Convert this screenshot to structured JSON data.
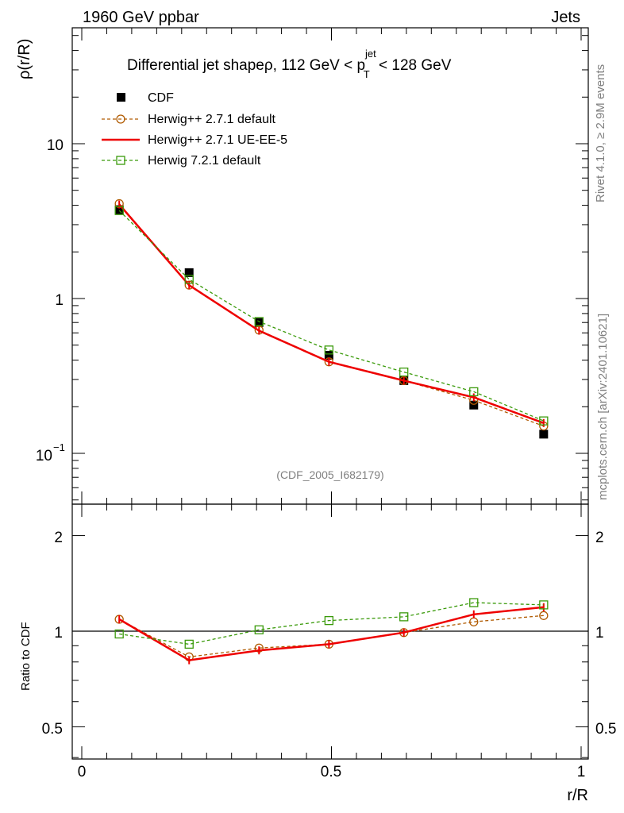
{
  "header": {
    "left": "1960 GeV ppbar",
    "right": "Jets",
    "side_top": "Rivet 4.1.0, ≥ 2.9M events",
    "side_bottom": "mcplots.cern.ch [arXiv:2401.10621]",
    "analysis": "(CDF_2005_I682179)"
  },
  "colors": {
    "data": "#000000",
    "herwigpp_default": "#b05a00",
    "herwigpp_ueee5": "#ee0000",
    "herwig7": "#3a9a0a"
  },
  "chart_data": [
    {
      "type": "line",
      "panel": "main",
      "title_main": "Differential jet shapeρ, 112 GeV < p",
      "title_sup": "jet",
      "title_sub": "T",
      "title_tail": " < 128 GeV",
      "ylabel": "ρ(r/R)",
      "yscale": "log",
      "ylim": [
        0.055,
        55
      ],
      "xlim": [
        0,
        1
      ],
      "ytick_labels": [
        {
          "value": 0.1,
          "base": "10",
          "exp": "−1"
        },
        {
          "value": 1,
          "base": "1",
          "exp": ""
        },
        {
          "value": 10,
          "base": "10",
          "exp": ""
        }
      ],
      "legend_position": "top-left",
      "x": [
        0.075,
        0.215,
        0.355,
        0.495,
        0.645,
        0.785,
        0.925
      ],
      "series": [
        {
          "name": "CDF",
          "style": "data",
          "values": [
            3.75,
            1.47,
            0.7,
            0.43,
            0.295,
            0.205,
            0.133
          ],
          "errors": [
            0.12,
            0.05,
            0.02,
            0.013,
            0.009,
            0.007,
            0.005
          ]
        },
        {
          "name": "Herwig++ 2.7.1 default",
          "style": "hpp_default",
          "values": [
            4.1,
            1.22,
            0.625,
            0.39,
            0.295,
            0.22,
            0.15
          ]
        },
        {
          "name": "Herwig++ 2.7.1 UE-EE-5",
          "style": "hpp_ueee5",
          "values": [
            4.05,
            1.22,
            0.62,
            0.39,
            0.295,
            0.23,
            0.157
          ]
        },
        {
          "name": "Herwig 7.2.1 default",
          "style": "h7",
          "values": [
            3.7,
            1.33,
            0.71,
            0.465,
            0.335,
            0.25,
            0.162
          ]
        }
      ]
    },
    {
      "type": "line",
      "panel": "ratio",
      "ylabel": "Ratio to CDF",
      "xlabel": "r/R",
      "yscale": "log",
      "ylim": [
        0.4,
        2.5
      ],
      "xlim": [
        0,
        1
      ],
      "ytick_labels": [
        {
          "value": 0.5,
          "label": "0.5"
        },
        {
          "value": 1,
          "label": "1"
        },
        {
          "value": 2,
          "label": "2"
        }
      ],
      "xtick_labels": [
        {
          "value": 0,
          "label": "0"
        },
        {
          "value": 0.5,
          "label": "0.5"
        },
        {
          "value": 1,
          "label": "1"
        }
      ],
      "x": [
        0.075,
        0.215,
        0.355,
        0.495,
        0.645,
        0.785,
        0.925
      ],
      "series": [
        {
          "name": "Herwig++ 2.7.1 default",
          "style": "hpp_default",
          "values": [
            1.09,
            0.83,
            0.885,
            0.91,
            0.99,
            1.07,
            1.12
          ]
        },
        {
          "name": "Herwig++ 2.7.1 UE-EE-5",
          "style": "hpp_ueee5",
          "values": [
            1.09,
            0.81,
            0.87,
            0.91,
            0.99,
            1.13,
            1.19
          ]
        },
        {
          "name": "Herwig 7.2.1 default",
          "style": "h7",
          "values": [
            0.98,
            0.91,
            1.01,
            1.08,
            1.11,
            1.23,
            1.21
          ]
        }
      ]
    }
  ]
}
